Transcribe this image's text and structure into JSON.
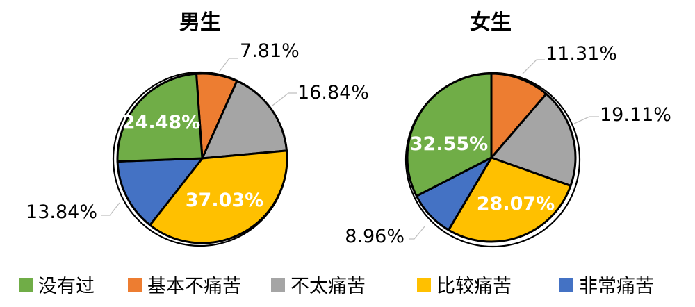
{
  "chart_data": [
    {
      "type": "pie",
      "title": "男生",
      "slices": [
        {
          "category": "基本不痛苦",
          "label": "7.81%",
          "value": 7.81
        },
        {
          "category": "不太痛苦",
          "label": "16.84%",
          "value": 16.84
        },
        {
          "category": "比较痛苦",
          "label": "37.03%",
          "value": 37.03
        },
        {
          "category": "非常痛苦",
          "label": "13.84%",
          "value": 13.84
        },
        {
          "category": "没有过",
          "label": "24.48%",
          "value": 24.48
        }
      ]
    },
    {
      "type": "pie",
      "title": "女生",
      "slices": [
        {
          "category": "基本不痛苦",
          "label": "11.31%",
          "value": 11.31
        },
        {
          "category": "不太痛苦",
          "label": "19.11%",
          "value": 19.11
        },
        {
          "category": "比较痛苦",
          "label": "28.07%",
          "value": 28.07
        },
        {
          "category": "非常痛苦",
          "label": "8.96%",
          "value": 8.96
        },
        {
          "category": "没有过",
          "label": "32.55%",
          "value": 32.55
        }
      ]
    }
  ],
  "legend": [
    {
      "label": "没有过",
      "color": "#70ad47"
    },
    {
      "label": "基本不痛苦",
      "color": "#ed7d31"
    },
    {
      "label": "不太痛苦",
      "color": "#a5a5a5"
    },
    {
      "label": "比较痛苦",
      "color": "#ffc000"
    },
    {
      "label": "非常痛苦",
      "color": "#4472c4"
    }
  ],
  "legend_position": "bottom"
}
